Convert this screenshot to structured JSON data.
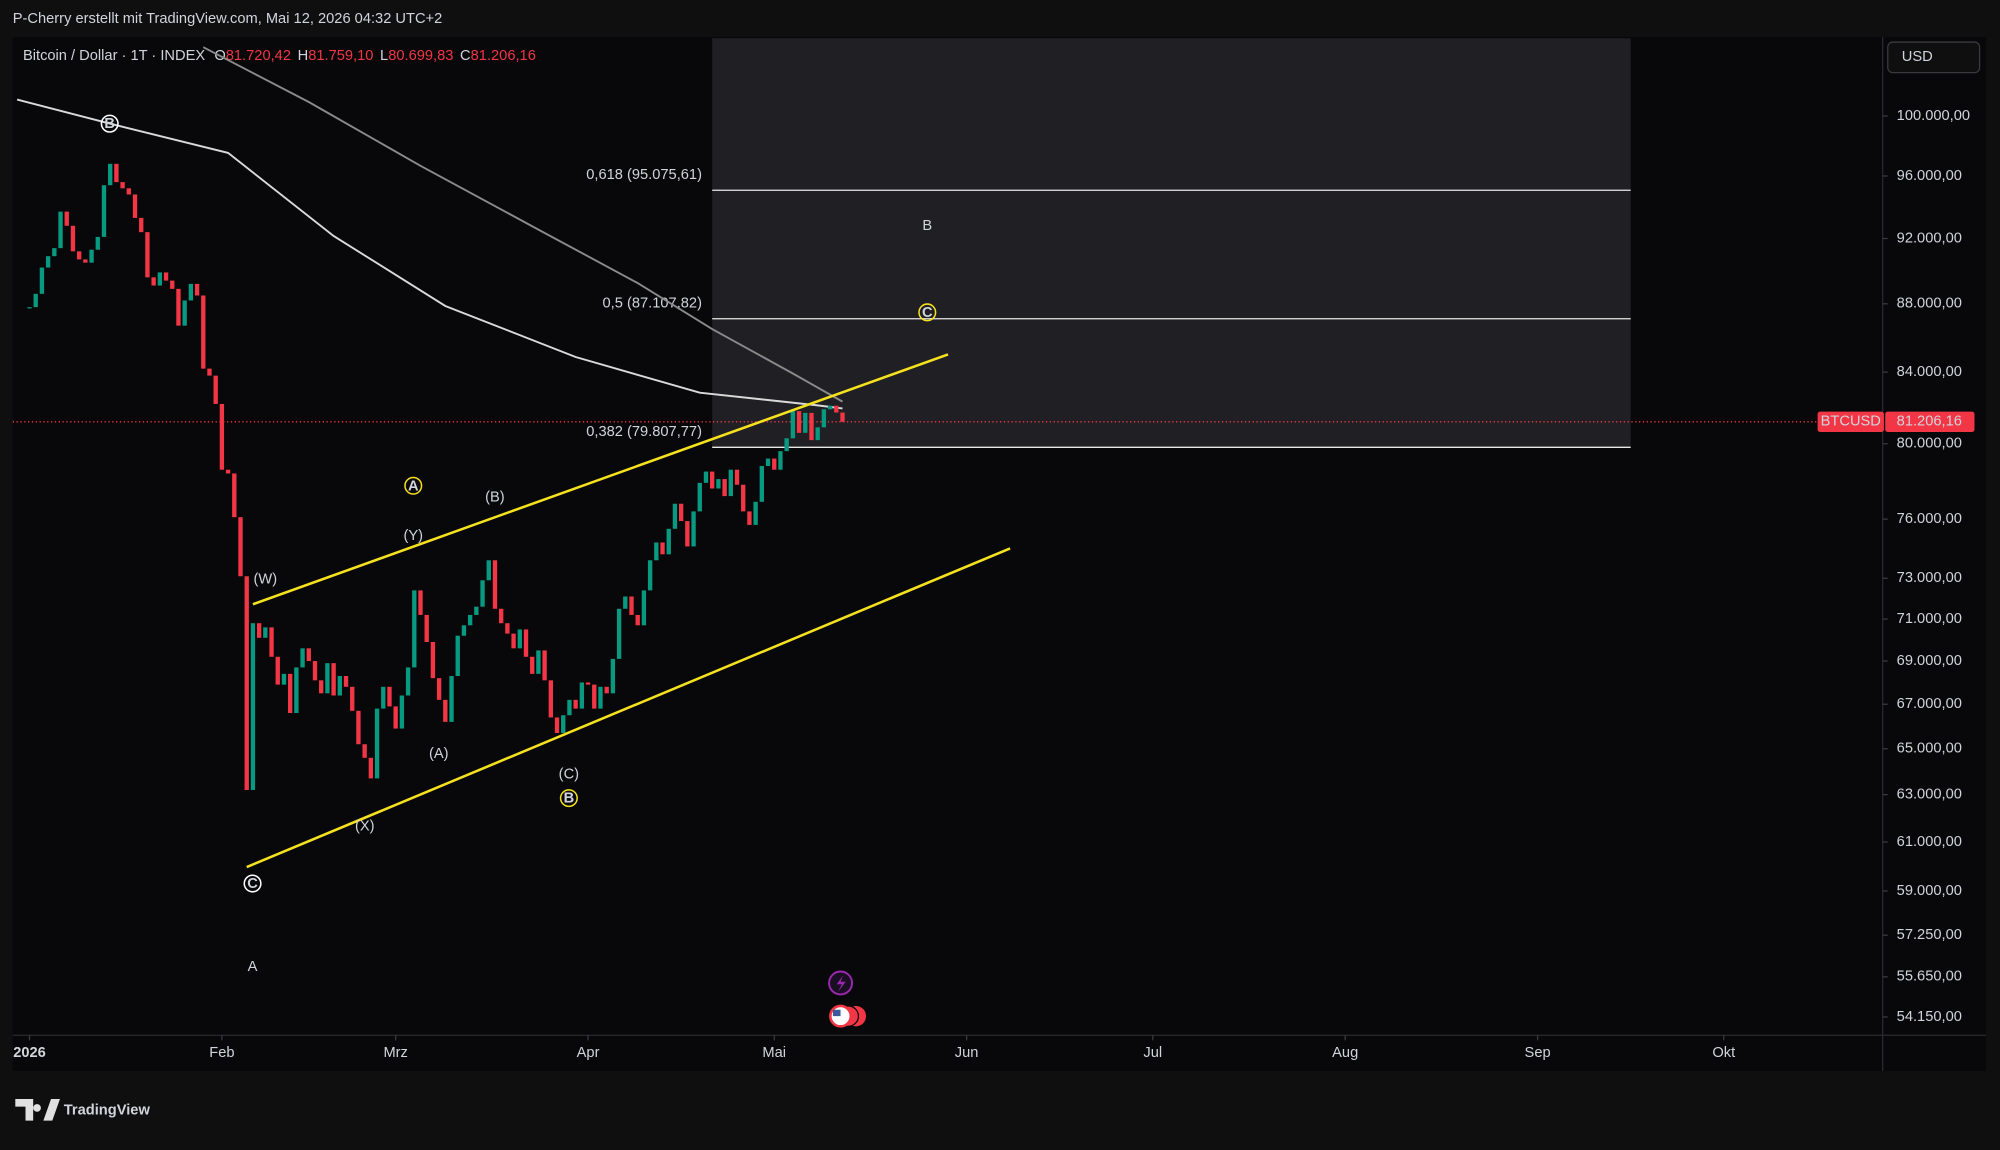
{
  "header": {
    "attribution": "P-Cherry erstellt mit TradingView.com, Mai 12, 2026 04:32 UTC+2",
    "symbol": "Bitcoin / Dollar · 1T · INDEX",
    "ohlc": [
      {
        "key": "O",
        "value": "81.720,42"
      },
      {
        "key": "H",
        "value": "81.759,10"
      },
      {
        "key": "L",
        "value": "80.699,83"
      },
      {
        "key": "C",
        "value": "81.206,16"
      }
    ]
  },
  "footer": {
    "brand": "TradingView"
  },
  "chart_data": {
    "type": "candlestick",
    "x": [
      0,
      1,
      2,
      3,
      4,
      5,
      6,
      7,
      8,
      9,
      10,
      11,
      12,
      13,
      14,
      15,
      16,
      17,
      18,
      19,
      20,
      21,
      22,
      23,
      24,
      25,
      26,
      27,
      28,
      29,
      30,
      31,
      32,
      33,
      34,
      35,
      36,
      37,
      38,
      39,
      40,
      41,
      42,
      43,
      44,
      45,
      46,
      47,
      48,
      49,
      50,
      51,
      52,
      53,
      54,
      55,
      56,
      57,
      58,
      59,
      60,
      61,
      62,
      63,
      64,
      65,
      66,
      67,
      68,
      69,
      70,
      71,
      72,
      73,
      74,
      75,
      76,
      77,
      78,
      79,
      80,
      81,
      82,
      83,
      84,
      85,
      86,
      87,
      88,
      89,
      90,
      91,
      92,
      93,
      94,
      95,
      96,
      97,
      98,
      99,
      100,
      101,
      102,
      103,
      104,
      105,
      106,
      107,
      108,
      109,
      110,
      111,
      112,
      113,
      114,
      115,
      116,
      117,
      118,
      119,
      120,
      121,
      122,
      123,
      124,
      125,
      126,
      127,
      128,
      129,
      130,
      131
    ],
    "close": [
      87800,
      88600,
      90200,
      90900,
      91400,
      93700,
      92800,
      91200,
      90700,
      90500,
      91300,
      92100,
      95400,
      96800,
      95600,
      95200,
      94800,
      93300,
      92400,
      89600,
      89100,
      89900,
      89400,
      88900,
      86700,
      88200,
      89200,
      88500,
      84200,
      83800,
      82200,
      78600,
      78400,
      76100,
      73100,
      63200,
      70800,
      70100,
      70600,
      69200,
      67900,
      68400,
      66600,
      68700,
      69600,
      69000,
      68100,
      67500,
      68900,
      67400,
      68300,
      67800,
      66700,
      65200,
      64600,
      63700,
      66800,
      67800,
      66900,
      65900,
      67400,
      68700,
      72400,
      71200,
      69900,
      68200,
      67200,
      66200,
      68300,
      70200,
      70700,
      71200,
      71600,
      72900,
      73900,
      71500,
      70800,
      70300,
      69600,
      70500,
      69200,
      68400,
      69500,
      68100,
      66400,
      65700,
      66500,
      67200,
      66800,
      68000,
      67900,
      66800,
      67800,
      67500,
      69100,
      71500,
      72100,
      71200,
      70700,
      72400,
      73900,
      74800,
      74200,
      75500,
      76800,
      75900,
      74600,
      76400,
      77900,
      78500,
      77600,
      78100,
      77200,
      78600,
      77800,
      76400,
      75700,
      76900,
      78800,
      79200,
      78600,
      79600,
      80300,
      81800,
      80600,
      81700,
      80200,
      80900,
      81900,
      82100,
      81720,
      81206.16
    ],
    "colors": {
      "up": "#089981",
      "down": "#f23645"
    },
    "xlim": [
      -2.7,
      298.6
    ],
    "xticks": [
      {
        "value": 0,
        "label": "2026"
      },
      {
        "value": 31,
        "label": "Feb"
      },
      {
        "value": 59,
        "label": "Mrz"
      },
      {
        "value": 90,
        "label": "Apr"
      },
      {
        "value": 120,
        "label": "Mai"
      },
      {
        "value": 151,
        "label": "Jun"
      },
      {
        "value": 181,
        "label": "Jul"
      },
      {
        "value": 212,
        "label": "Aug"
      },
      {
        "value": 243,
        "label": "Sep"
      },
      {
        "value": 273,
        "label": "Okt"
      }
    ],
    "ylim": [
      53480,
      105440
    ],
    "log_scale": true,
    "yticks": [
      {
        "value": 100000,
        "label": "100.000,00"
      },
      {
        "value": 96000,
        "label": "96.000,00"
      },
      {
        "value": 92000,
        "label": "92.000,00"
      },
      {
        "value": 88000,
        "label": "88.000,00"
      },
      {
        "value": 84000,
        "label": "84.000,00"
      },
      {
        "value": 80000,
        "label": "80.000,00"
      },
      {
        "value": 76000,
        "label": "76.000,00"
      },
      {
        "value": 73000,
        "label": "73.000,00"
      },
      {
        "value": 71000,
        "label": "71.000,00"
      },
      {
        "value": 69000,
        "label": "69.000,00"
      },
      {
        "value": 67000,
        "label": "67.000,00"
      },
      {
        "value": 65000,
        "label": "65.000,00"
      },
      {
        "value": 63000,
        "label": "63.000,00"
      },
      {
        "value": 61000,
        "label": "61.000,00"
      },
      {
        "value": 59000,
        "label": "59.000,00"
      },
      {
        "value": 57250,
        "label": "57.250,00"
      },
      {
        "value": 55650,
        "label": "55.650,00"
      },
      {
        "value": 54150,
        "label": "54.150,00"
      }
    ],
    "currency": "USD",
    "last_price": {
      "symbol": "BTCUSD",
      "value": 81206.16,
      "label": "81.206,16",
      "color": "#f23645"
    },
    "moving_averages": [
      {
        "color": "#d9d9d9",
        "x": [
          -2,
          13,
          32,
          49,
          67,
          88,
          108,
          127,
          131
        ],
        "values": [
          101130,
          99480,
          97520,
          92160,
          87870,
          84870,
          82830,
          82120,
          81950
        ]
      },
      {
        "color": "#8a8a8a",
        "x": [
          28,
          45,
          63,
          82,
          98,
          110,
          123,
          131
        ],
        "values": [
          104800,
          100960,
          96670,
          92560,
          89250,
          86500,
          83920,
          82330
        ]
      }
    ],
    "channel": {
      "color": "#f5e11e",
      "lines": [
        {
          "x": [
            36,
            148
          ],
          "values": [
            71720,
            85020
          ]
        },
        {
          "x": [
            35,
            158
          ],
          "values": [
            59970,
            74500
          ]
        }
      ]
    },
    "fib": {
      "x_range": [
        110,
        258
      ],
      "levels": [
        {
          "label": "0,618 (95.075,61)",
          "value": 95075.61
        },
        {
          "label": "0,5 (87.107,82)",
          "value": 87107.82
        },
        {
          "label": "0,382 (79.807,77)",
          "value": 79807.77
        }
      ]
    },
    "annotations": [
      "B",
      "C",
      "A",
      "B",
      "A",
      "(Y)",
      "(B)",
      "(W)",
      "(A)",
      "(X)",
      "(C)",
      "B",
      "C"
    ]
  }
}
